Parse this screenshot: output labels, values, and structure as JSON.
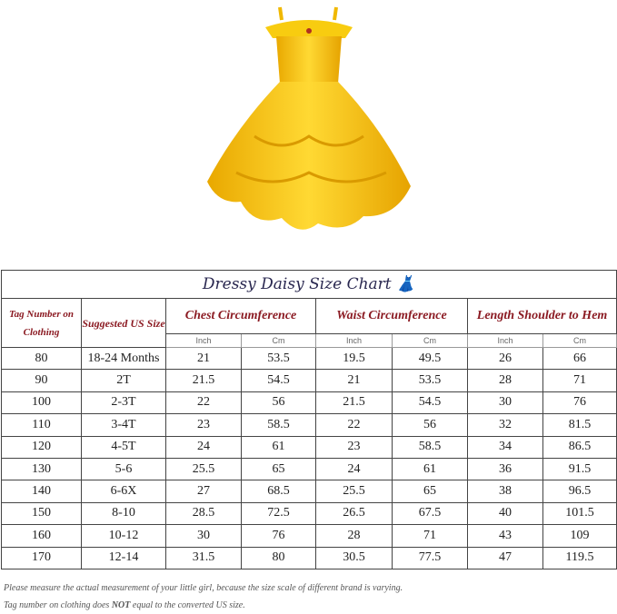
{
  "colors": {
    "dress": "#f6c400",
    "header_text": "#8b1a22",
    "title_text": "#2a2850"
  },
  "title": "Dressy Daisy Size Chart",
  "title_icon": "dress-icon",
  "headers": {
    "tag": "Tag Number on Clothing",
    "us": "Suggested US Size",
    "chest": "Chest Circumference",
    "waist": "Waist Circumference",
    "length": "Length Shoulder to Hem",
    "inch": "Inch",
    "cm": "Cm"
  },
  "rows": [
    [
      "80",
      "18-24 Months",
      "21",
      "53.5",
      "19.5",
      "49.5",
      "26",
      "66"
    ],
    [
      "90",
      "2T",
      "21.5",
      "54.5",
      "21",
      "53.5",
      "28",
      "71"
    ],
    [
      "100",
      "2-3T",
      "22",
      "56",
      "21.5",
      "54.5",
      "30",
      "76"
    ],
    [
      "110",
      "3-4T",
      "23",
      "58.5",
      "22",
      "56",
      "32",
      "81.5"
    ],
    [
      "120",
      "4-5T",
      "24",
      "61",
      "23",
      "58.5",
      "34",
      "86.5"
    ],
    [
      "130",
      "5-6",
      "25.5",
      "65",
      "24",
      "61",
      "36",
      "91.5"
    ],
    [
      "140",
      "6-6X",
      "27",
      "68.5",
      "25.5",
      "65",
      "38",
      "96.5"
    ],
    [
      "150",
      "8-10",
      "28.5",
      "72.5",
      "26.5",
      "67.5",
      "40",
      "101.5"
    ],
    [
      "160",
      "10-12",
      "30",
      "76",
      "28",
      "71",
      "43",
      "109"
    ],
    [
      "170",
      "12-14",
      "31.5",
      "80",
      "30.5",
      "77.5",
      "47",
      "119.5"
    ]
  ],
  "notes": {
    "line1": "Please measure the actual measurement of your little girl, because the size scale of different brand is varying.",
    "line2_pre": "Tag number on clothing does ",
    "line2_bold": "NOT",
    "line2_post": " equal to the converted US size."
  }
}
